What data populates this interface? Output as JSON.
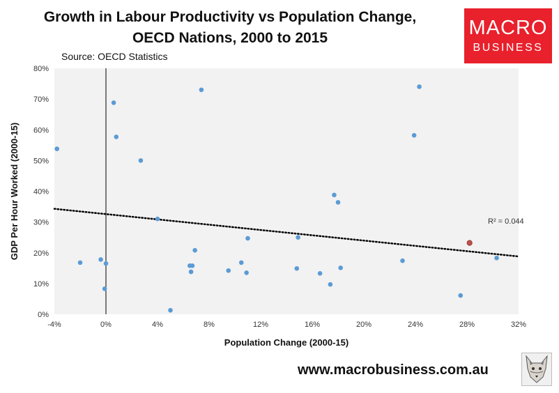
{
  "header": {
    "title_line1": "Growth in Labour Productivity vs Population Change,",
    "title_line2": "OECD Nations, 2000 to 2015",
    "source": "Source: OECD Statistics"
  },
  "logo": {
    "line1": "MACRO",
    "line2": "BUSINESS",
    "color": "#e8212c"
  },
  "footer": {
    "url": "www.macrobusiness.com.au",
    "mascot_icon": "wolf-icon"
  },
  "chart_data": {
    "type": "scatter",
    "title": "Growth in Labour Productivity vs Population Change, OECD Nations, 2000 to 2015",
    "xlabel": "Population Change (2000-15)",
    "ylabel": "GDP Per Hour Worked (2000-15)",
    "xlim": [
      -4,
      32
    ],
    "ylim": [
      0,
      80
    ],
    "xticks": [
      -4,
      0,
      4,
      8,
      12,
      16,
      20,
      24,
      28,
      32
    ],
    "xtick_labels": [
      "-4%",
      "0%",
      "4%",
      "8%",
      "12%",
      "16%",
      "20%",
      "24%",
      "28%",
      "32%"
    ],
    "yticks": [
      0,
      10,
      20,
      30,
      40,
      50,
      60,
      70,
      80
    ],
    "ytick_labels": [
      "0%",
      "10%",
      "20%",
      "30%",
      "40%",
      "50%",
      "60%",
      "70%",
      "80%"
    ],
    "grid": false,
    "plot_background": "#f2f2f2",
    "point_color": "#5b9bd5",
    "highlight_color": "#c0504d",
    "x": [
      -3.8,
      -2.0,
      -0.4,
      -0.1,
      0.0,
      0.6,
      0.8,
      2.7,
      4.0,
      6.5,
      6.6,
      6.7,
      6.9,
      7.4,
      5.0,
      9.5,
      10.5,
      10.9,
      11.0,
      14.8,
      14.9,
      16.6,
      17.4,
      17.7,
      18.0,
      18.2,
      23.0,
      23.9,
      24.3,
      27.5,
      28.2,
      30.3
    ],
    "y": [
      53.8,
      16.8,
      17.8,
      8.3,
      16.5,
      68.8,
      57.7,
      50.0,
      31.0,
      15.8,
      13.8,
      15.8,
      20.8,
      73.0,
      1.3,
      14.2,
      16.8,
      13.5,
      24.7,
      14.9,
      25.0,
      13.3,
      9.7,
      38.8,
      36.4,
      15.1,
      17.4,
      58.2,
      74.0,
      6.1,
      23.2,
      18.3
    ],
    "highlight_index": 30,
    "trendline": {
      "style": "dotted",
      "color": "#000000",
      "x": [
        -4,
        32
      ],
      "y": [
        34.3,
        18.8
      ],
      "r_squared_label": "R² = 0.044"
    }
  }
}
